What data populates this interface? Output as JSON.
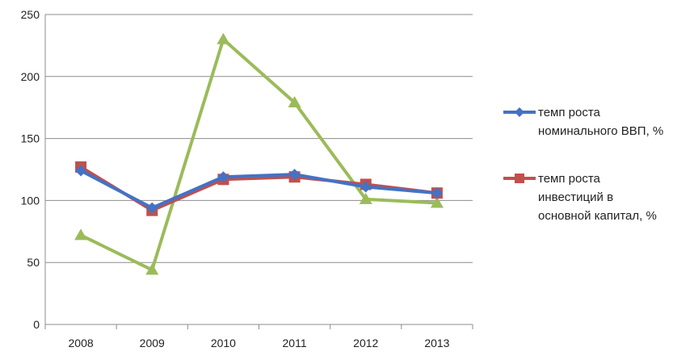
{
  "chart_data": {
    "type": "line",
    "categories": [
      "2008",
      "2009",
      "2010",
      "2011",
      "2012",
      "2013"
    ],
    "ylim": [
      0,
      250
    ],
    "yticks": [
      0,
      50,
      100,
      150,
      200,
      250
    ],
    "grid": true,
    "legend_position": "right",
    "series": [
      {
        "name": "темп роста номинального ВВП, %",
        "color": "#4472c4",
        "marker": "diamond",
        "values": [
          124,
          94,
          119,
          121,
          111,
          106
        ]
      },
      {
        "name": "темп роста инвестиций в основной капитал, %",
        "color": "#c0504d",
        "marker": "square",
        "values": [
          127,
          92,
          117,
          119,
          113,
          106
        ]
      },
      {
        "color": "#9bbb59",
        "marker": "triangle",
        "values": [
          72,
          44,
          230,
          179,
          101,
          98
        ]
      }
    ]
  }
}
